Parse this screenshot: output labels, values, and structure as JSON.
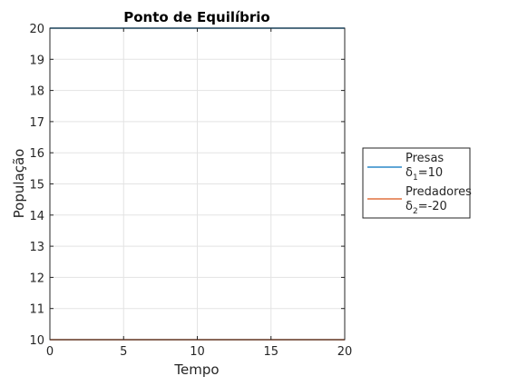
{
  "chart_data": {
    "type": "line",
    "title": "Ponto de Equilíbrio",
    "xlabel": "Tempo",
    "ylabel": "População",
    "xlim": [
      0,
      20
    ],
    "ylim": [
      10,
      20
    ],
    "xticks": [
      0,
      5,
      10,
      15,
      20
    ],
    "yticks": [
      10,
      11,
      12,
      13,
      14,
      15,
      16,
      17,
      18,
      19,
      20
    ],
    "grid": true,
    "legend_position": "outside-right",
    "series": [
      {
        "name": "Presas",
        "param_symbol": "δ",
        "param_subscript": "1",
        "param_value": "=10",
        "color": "#0072BD",
        "x": [
          0,
          20
        ],
        "y": [
          20,
          20
        ]
      },
      {
        "name": "Predadores",
        "param_symbol": "δ",
        "param_subscript": "2",
        "param_value": "=-20",
        "color": "#D95319",
        "x": [
          0,
          20
        ],
        "y": [
          10,
          10
        ]
      }
    ]
  }
}
